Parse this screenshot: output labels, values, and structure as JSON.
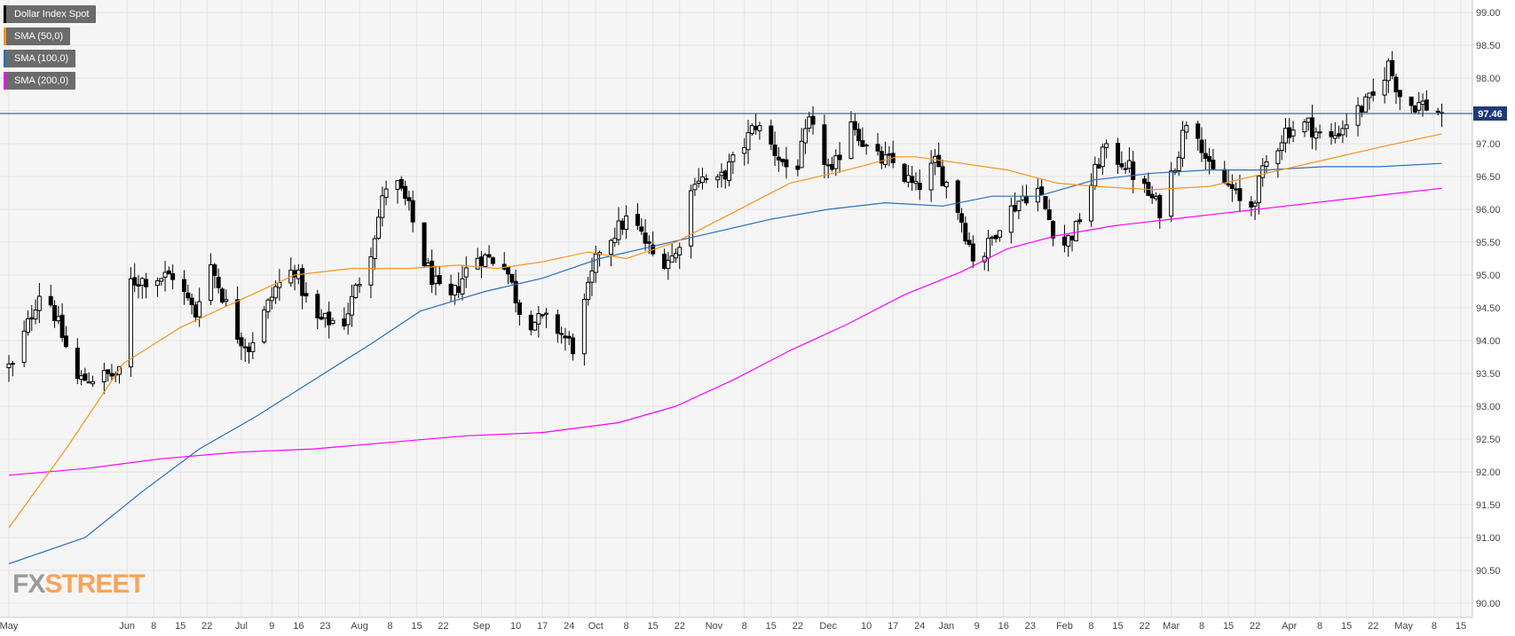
{
  "legend": [
    {
      "label": "Dollar Index Spot",
      "color": "#000000"
    },
    {
      "label": "SMA (50,0)",
      "color": "#f7931a"
    },
    {
      "label": "SMA (100,0)",
      "color": "#2a6ebb"
    },
    {
      "label": "SMA (200,0)",
      "color": "#ff00ff"
    }
  ],
  "logo": {
    "part1": "FX",
    "part2": "STREET",
    "color1": "#9a9a9a",
    "color2": "#f7a45c"
  },
  "price_label": "97.46",
  "colors": {
    "up": "#ffffff",
    "down": "#000000",
    "wick": "#000000",
    "background": "#f5f5f5",
    "grid": "#e4e4e4",
    "price_line": "#1f3a7a"
  },
  "chart_data": {
    "type": "candlestick",
    "title": "Dollar Index Spot",
    "ylim": [
      89.85,
      99.15
    ],
    "y_ticks": [
      "90.00",
      "90.50",
      "91.00",
      "91.50",
      "92.00",
      "92.50",
      "93.00",
      "93.50",
      "94.00",
      "94.50",
      "95.00",
      "95.50",
      "96.00",
      "96.50",
      "97.00",
      "97.50",
      "98.00",
      "98.50",
      "99.00"
    ],
    "x_ticks": [
      "May",
      "Jun",
      "8",
      "15",
      "22",
      "Jul",
      "9",
      "16",
      "23",
      "Aug",
      "8",
      "15",
      "22",
      "Sep",
      "10",
      "17",
      "24",
      "Oct",
      "8",
      "15",
      "22",
      "Nov",
      "8",
      "15",
      "22",
      "Dec",
      "10",
      "17",
      "24",
      "Jan",
      "9",
      "16",
      "23",
      "Feb",
      "8",
      "15",
      "22",
      "Mar",
      "8",
      "15",
      "22",
      "Apr",
      "8",
      "15",
      "22",
      "May",
      "8",
      "15"
    ],
    "x_tick_days": [
      0,
      31,
      38,
      45,
      52,
      61,
      69,
      76,
      83,
      92,
      100,
      107,
      114,
      124,
      133,
      140,
      147,
      154,
      162,
      169,
      176,
      185,
      193,
      200,
      207,
      215,
      225,
      232,
      239,
      246,
      254,
      261,
      268,
      277,
      284,
      291,
      298,
      305,
      313,
      320,
      327,
      336,
      344,
      351,
      358,
      366,
      374,
      381
    ],
    "current_price": 97.46,
    "anchors": [
      [
        1,
        93.6
      ],
      [
        9,
        94.9
      ],
      [
        18,
        93.4
      ],
      [
        30,
        93.5
      ],
      [
        32,
        94.9
      ],
      [
        43,
        95.0
      ],
      [
        49,
        94.4
      ],
      [
        52,
        95.3
      ],
      [
        60,
        94.1
      ],
      [
        63,
        93.9
      ],
      [
        70,
        94.8
      ],
      [
        75,
        95.1
      ],
      [
        80,
        94.3
      ],
      [
        88,
        94.3
      ],
      [
        95,
        95.4
      ],
      [
        100,
        96.6
      ],
      [
        105,
        96.0
      ],
      [
        109,
        95.2
      ],
      [
        115,
        94.5
      ],
      [
        122,
        95.3
      ],
      [
        130,
        95.2
      ],
      [
        135,
        94.3
      ],
      [
        142,
        94.3
      ],
      [
        148,
        93.9
      ],
      [
        155,
        95.4
      ],
      [
        163,
        95.9
      ],
      [
        170,
        95.2
      ],
      [
        175,
        95.3
      ],
      [
        180,
        96.5
      ],
      [
        186,
        96.4
      ],
      [
        191,
        96.8
      ],
      [
        196,
        97.3
      ],
      [
        202,
        96.8
      ],
      [
        206,
        96.5
      ],
      [
        210,
        97.3
      ],
      [
        216,
        96.5
      ],
      [
        221,
        97.4
      ],
      [
        226,
        96.8
      ],
      [
        232,
        96.7
      ],
      [
        238,
        96.3
      ],
      [
        243,
        96.7
      ],
      [
        248,
        96.2
      ],
      [
        254,
        95.1
      ],
      [
        260,
        95.8
      ],
      [
        266,
        96.2
      ],
      [
        270,
        96.3
      ],
      [
        276,
        95.4
      ],
      [
        280,
        95.7
      ],
      [
        287,
        96.9
      ],
      [
        293,
        96.7
      ],
      [
        298,
        96.3
      ],
      [
        302,
        96.0
      ],
      [
        307,
        96.9
      ],
      [
        310,
        97.6
      ],
      [
        315,
        96.6
      ],
      [
        321,
        96.3
      ],
      [
        325,
        95.9
      ],
      [
        330,
        96.7
      ],
      [
        335,
        97.2
      ],
      [
        341,
        97.3
      ],
      [
        346,
        97.0
      ],
      [
        352,
        97.4
      ],
      [
        358,
        97.7
      ],
      [
        362,
        98.2
      ],
      [
        366,
        97.6
      ],
      [
        371,
        97.6
      ],
      [
        376,
        97.46
      ]
    ],
    "sma50": [
      [
        0,
        91.15
      ],
      [
        15,
        92.35
      ],
      [
        30,
        93.65
      ],
      [
        45,
        94.2
      ],
      [
        60,
        94.6
      ],
      [
        75,
        95.0
      ],
      [
        90,
        95.1
      ],
      [
        105,
        95.1
      ],
      [
        118,
        95.15
      ],
      [
        128,
        95.1
      ],
      [
        140,
        95.2
      ],
      [
        152,
        95.35
      ],
      [
        162,
        95.25
      ],
      [
        175,
        95.5
      ],
      [
        190,
        95.95
      ],
      [
        205,
        96.4
      ],
      [
        220,
        96.6
      ],
      [
        233,
        96.8
      ],
      [
        238,
        96.8
      ],
      [
        250,
        96.7
      ],
      [
        262,
        96.6
      ],
      [
        275,
        96.4
      ],
      [
        285,
        96.35
      ],
      [
        300,
        96.3
      ],
      [
        315,
        96.35
      ],
      [
        330,
        96.55
      ],
      [
        345,
        96.75
      ],
      [
        360,
        96.95
      ],
      [
        376,
        97.15
      ]
    ],
    "sma100": [
      [
        0,
        90.6
      ],
      [
        20,
        91.0
      ],
      [
        35,
        91.7
      ],
      [
        50,
        92.35
      ],
      [
        65,
        92.85
      ],
      [
        80,
        93.4
      ],
      [
        95,
        93.95
      ],
      [
        108,
        94.45
      ],
      [
        125,
        94.75
      ],
      [
        140,
        94.95
      ],
      [
        155,
        95.25
      ],
      [
        170,
        95.45
      ],
      [
        185,
        95.65
      ],
      [
        200,
        95.85
      ],
      [
        215,
        96.0
      ],
      [
        230,
        96.1
      ],
      [
        245,
        96.05
      ],
      [
        258,
        96.2
      ],
      [
        270,
        96.2
      ],
      [
        285,
        96.45
      ],
      [
        300,
        96.55
      ],
      [
        315,
        96.6
      ],
      [
        330,
        96.6
      ],
      [
        345,
        96.65
      ],
      [
        360,
        96.65
      ],
      [
        376,
        96.7
      ]
    ],
    "sma200": [
      [
        0,
        91.95
      ],
      [
        20,
        92.05
      ],
      [
        40,
        92.2
      ],
      [
        60,
        92.3
      ],
      [
        80,
        92.35
      ],
      [
        100,
        92.45
      ],
      [
        120,
        92.55
      ],
      [
        140,
        92.6
      ],
      [
        160,
        92.75
      ],
      [
        175,
        93.0
      ],
      [
        190,
        93.4
      ],
      [
        205,
        93.85
      ],
      [
        220,
        94.25
      ],
      [
        235,
        94.7
      ],
      [
        250,
        95.05
      ],
      [
        262,
        95.4
      ],
      [
        275,
        95.6
      ],
      [
        290,
        95.75
      ],
      [
        305,
        95.85
      ],
      [
        320,
        95.95
      ],
      [
        335,
        96.05
      ],
      [
        350,
        96.15
      ],
      [
        365,
        96.25
      ],
      [
        376,
        96.32
      ]
    ]
  }
}
